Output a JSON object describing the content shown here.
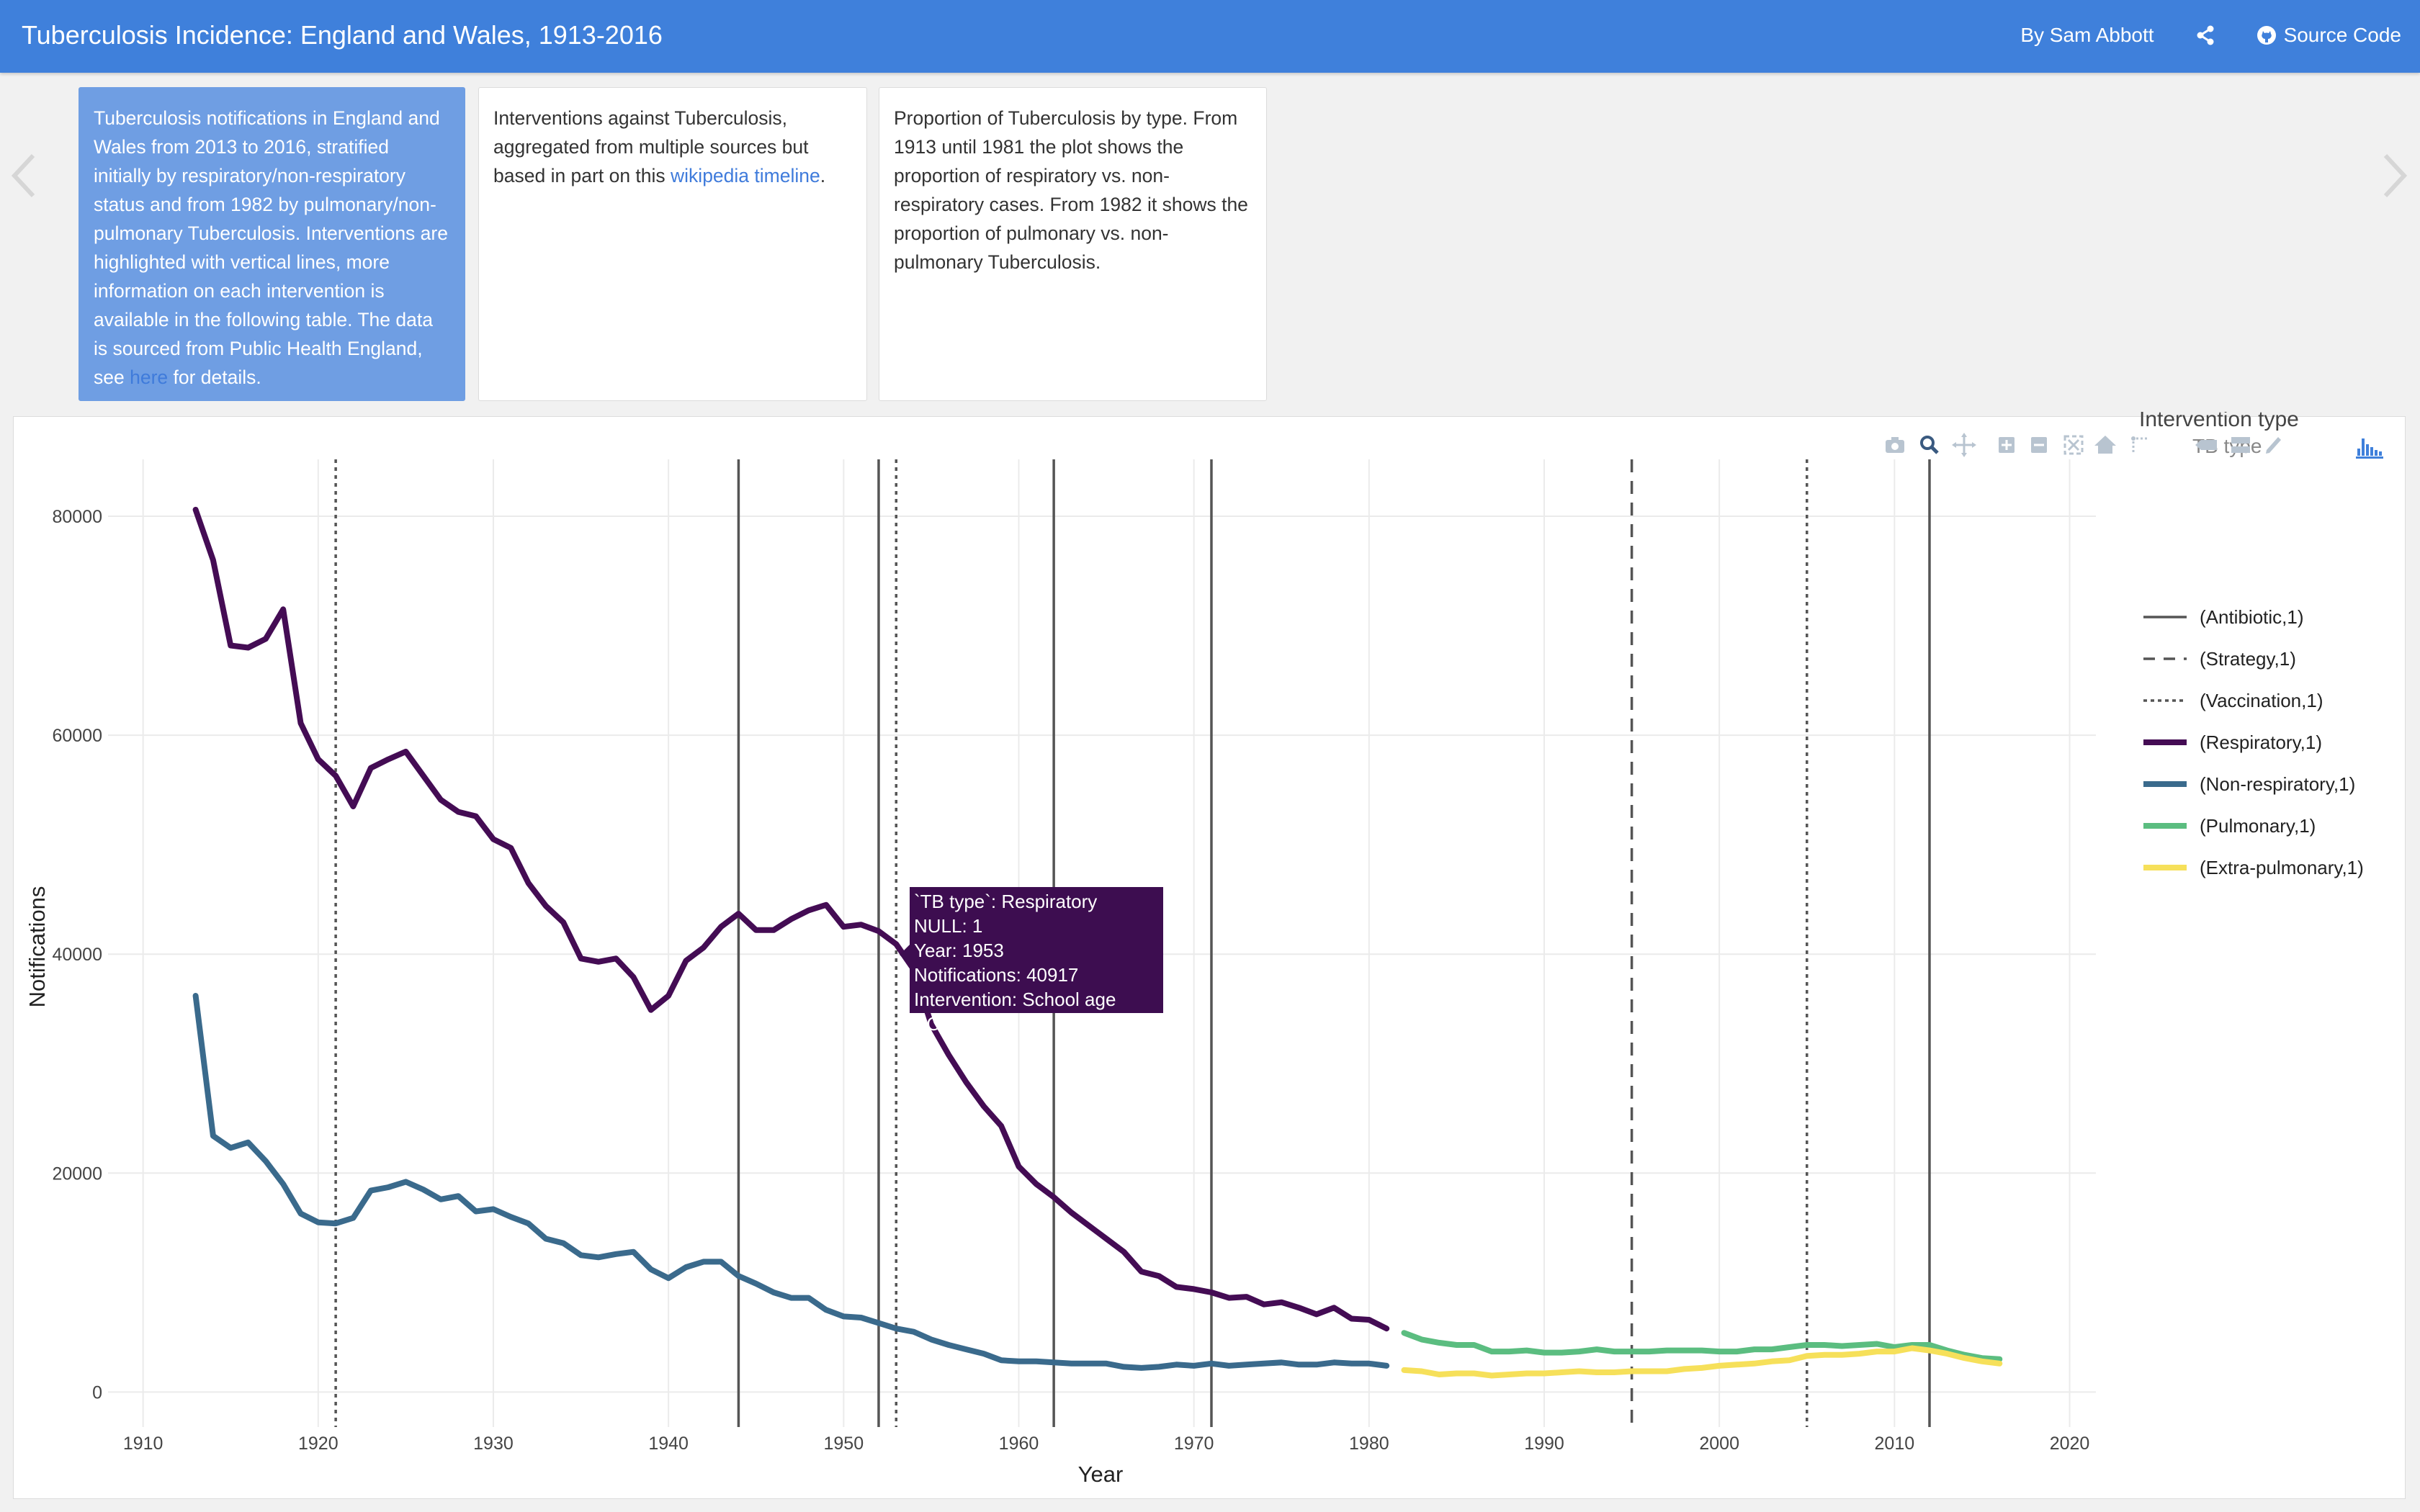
{
  "header": {
    "title": "Tuberculosis Incidence: England and Wales, 1913-2016",
    "author": "By Sam Abbott",
    "share_icon": "share-icon",
    "source_label": "Source Code",
    "source_icon": "github-icon"
  },
  "carousel": {
    "prev_icon": "chevron-left-icon",
    "next_icon": "chevron-right-icon",
    "cards": [
      {
        "text_before": "Tuberculosis notifications in England and Wales from 2013 to 2016, stratified initially by respiratory/non-respiratory status and from 1982 by pulmonary/non-pulmonary Tuberculosis. Interventions are highlighted with vertical lines, more information on each intervention is available in the following table. The data is sourced from Public Health England, see ",
        "link": "here",
        "text_after": " for details."
      },
      {
        "text_before": "Interventions against Tuberculosis, aggregated from multiple sources but based in part on this ",
        "link": "wikipedia timeline",
        "text_after": "."
      },
      {
        "text_before": "Proportion of Tuberculosis by type. From 1913 until 1981 the plot shows the proportion of respiratory vs. non-respiratory cases. From 1982 it shows the proportion of pulmonary vs. non-pulmonary Tuberculosis.",
        "link": "",
        "text_after": ""
      }
    ]
  },
  "modebar": {
    "icons": [
      "camera-icon",
      "zoom-icon",
      "pan-icon",
      "zoom-in-icon",
      "zoom-out-icon",
      "autoscale-icon",
      "reset-axes-icon",
      "spike-lines-icon",
      "hover-closest-icon",
      "hover-compare-icon",
      "plotly-logo-icon"
    ]
  },
  "legend": {
    "title": "Intervention type",
    "subtitle": "TB type",
    "items": [
      {
        "label": "(Antibiotic,1)",
        "style": "solid-thin",
        "color": "#555555"
      },
      {
        "label": "(Strategy,1)",
        "style": "dash",
        "color": "#555555"
      },
      {
        "label": "(Vaccination,1)",
        "style": "dot",
        "color": "#555555"
      },
      {
        "label": "(Respiratory,1)",
        "style": "thick",
        "color": "#440c54"
      },
      {
        "label": "(Non-respiratory,1)",
        "style": "thick",
        "color": "#3a6a8c"
      },
      {
        "label": "(Pulmonary,1)",
        "style": "thick",
        "color": "#5bbd80"
      },
      {
        "label": "(Extra-pulmonary,1)",
        "style": "thick",
        "color": "#f6e05a"
      }
    ]
  },
  "tooltip": {
    "line1": "`TB type`: Respiratory",
    "line2": "NULL: 1",
    "line3": "Year: 1953",
    "line4": "Notifications: 40917",
    "line5": "Intervention: School age BCG",
    "bg_color": "#3d0d50"
  },
  "chart_data": {
    "type": "line",
    "title": "",
    "xlabel": "Year",
    "ylabel": "Notifications",
    "xlim": [
      1908,
      2021.5
    ],
    "ylim": [
      -3200,
      85200
    ],
    "x_ticks": [
      1910,
      1920,
      1930,
      1940,
      1950,
      1960,
      1970,
      1980,
      1990,
      2000,
      2010,
      2020
    ],
    "y_ticks": [
      0,
      20000,
      40000,
      60000,
      80000
    ],
    "y_tick_labels": [
      "0",
      "20000",
      "40000",
      "60000",
      "80000"
    ],
    "grid": true,
    "legend_position": "right",
    "series": [
      {
        "name": "Respiratory",
        "color": "#440c54",
        "x": [
          1913,
          1914,
          1915,
          1916,
          1917,
          1918,
          1919,
          1920,
          1921,
          1922,
          1923,
          1924,
          1925,
          1926,
          1927,
          1928,
          1929,
          1930,
          1931,
          1932,
          1933,
          1934,
          1935,
          1936,
          1937,
          1938,
          1939,
          1940,
          1941,
          1942,
          1943,
          1944,
          1945,
          1946,
          1947,
          1948,
          1949,
          1950,
          1951,
          1952,
          1953,
          1954,
          1955,
          1956,
          1957,
          1958,
          1959,
          1960,
          1961,
          1962,
          1963,
          1964,
          1965,
          1966,
          1967,
          1968,
          1969,
          1970,
          1971,
          1972,
          1973,
          1974,
          1975,
          1976,
          1977,
          1978,
          1979,
          1980,
          1981
        ],
        "y": [
          80600,
          76000,
          68200,
          68000,
          68800,
          71500,
          61100,
          57800,
          56300,
          53500,
          57000,
          57800,
          58500,
          56300,
          54100,
          53000,
          52600,
          50500,
          49700,
          46500,
          44400,
          42900,
          39600,
          39300,
          39600,
          37900,
          34900,
          36200,
          39400,
          40600,
          42500,
          43700,
          42200,
          42200,
          43200,
          44000,
          44500,
          42500,
          42700,
          42100,
          40917,
          38600,
          33600,
          30800,
          28300,
          26100,
          24300,
          20600,
          19000,
          17800,
          16400,
          15200,
          14000,
          12800,
          11000,
          10600,
          9600,
          9400,
          9100,
          8600,
          8700,
          8000,
          8200,
          7700,
          7100,
          7700,
          6700,
          6600,
          5800
        ]
      },
      {
        "name": "Non-respiratory",
        "color": "#3a6a8c",
        "x": [
          1913,
          1914,
          1915,
          1916,
          1917,
          1918,
          1919,
          1920,
          1921,
          1922,
          1923,
          1924,
          1925,
          1926,
          1927,
          1928,
          1929,
          1930,
          1931,
          1932,
          1933,
          1934,
          1935,
          1936,
          1937,
          1938,
          1939,
          1940,
          1941,
          1942,
          1943,
          1944,
          1945,
          1946,
          1947,
          1948,
          1949,
          1950,
          1951,
          1952,
          1953,
          1954,
          1955,
          1956,
          1957,
          1958,
          1959,
          1960,
          1961,
          1962,
          1963,
          1964,
          1965,
          1966,
          1967,
          1968,
          1969,
          1970,
          1971,
          1972,
          1973,
          1974,
          1975,
          1976,
          1977,
          1978,
          1979,
          1980,
          1981
        ],
        "y": [
          36200,
          23400,
          22300,
          22800,
          21100,
          19000,
          16300,
          15500,
          15400,
          15900,
          18400,
          18700,
          19200,
          18500,
          17600,
          17900,
          16500,
          16700,
          16000,
          15400,
          14000,
          13600,
          12500,
          12300,
          12600,
          12800,
          11200,
          10400,
          11400,
          11900,
          11900,
          10600,
          9900,
          9100,
          8600,
          8600,
          7500,
          6900,
          6800,
          6300,
          5800,
          5500,
          4800,
          4300,
          3900,
          3500,
          2900,
          2800,
          2800,
          2700,
          2600,
          2600,
          2600,
          2300,
          2200,
          2300,
          2500,
          2400,
          2600,
          2400,
          2500,
          2600,
          2700,
          2500,
          2500,
          2700,
          2600,
          2600,
          2400
        ]
      },
      {
        "name": "Pulmonary",
        "color": "#5bbd80",
        "x": [
          1982,
          1983,
          1984,
          1985,
          1986,
          1987,
          1988,
          1989,
          1990,
          1991,
          1992,
          1993,
          1994,
          1995,
          1996,
          1997,
          1998,
          1999,
          2000,
          2001,
          2002,
          2003,
          2004,
          2005,
          2006,
          2007,
          2008,
          2009,
          2010,
          2011,
          2012,
          2013,
          2014,
          2015,
          2016
        ],
        "y": [
          5400,
          4800,
          4500,
          4300,
          4300,
          3700,
          3700,
          3800,
          3600,
          3600,
          3700,
          3900,
          3700,
          3700,
          3700,
          3800,
          3800,
          3800,
          3700,
          3700,
          3900,
          3900,
          4100,
          4300,
          4300,
          4200,
          4300,
          4400,
          4100,
          4300,
          4300,
          3800,
          3400,
          3100,
          3000
        ]
      },
      {
        "name": "Extra-pulmonary",
        "color": "#f6e05a",
        "x": [
          1982,
          1983,
          1984,
          1985,
          1986,
          1987,
          1988,
          1989,
          1990,
          1991,
          1992,
          1993,
          1994,
          1995,
          1996,
          1997,
          1998,
          1999,
          2000,
          2001,
          2002,
          2003,
          2004,
          2005,
          2006,
          2007,
          2008,
          2009,
          2010,
          2011,
          2012,
          2013,
          2014,
          2015,
          2016
        ],
        "y": [
          2000,
          1900,
          1600,
          1700,
          1700,
          1500,
          1600,
          1700,
          1700,
          1800,
          1900,
          1800,
          1800,
          1900,
          1900,
          1900,
          2100,
          2200,
          2400,
          2500,
          2600,
          2800,
          2900,
          3300,
          3400,
          3400,
          3500,
          3700,
          3700,
          4000,
          3800,
          3500,
          3100,
          2800,
          2600
        ]
      }
    ],
    "interventions": [
      {
        "year": 1921,
        "type": "Vaccination"
      },
      {
        "year": 1944,
        "type": "Antibiotic"
      },
      {
        "year": 1952,
        "type": "Antibiotic"
      },
      {
        "year": 1953,
        "type": "Vaccination"
      },
      {
        "year": 1962,
        "type": "Antibiotic"
      },
      {
        "year": 1971,
        "type": "Antibiotic"
      },
      {
        "year": 1995,
        "type": "Strategy"
      },
      {
        "year": 2005,
        "type": "Vaccination"
      },
      {
        "year": 2012,
        "type": "Antibiotic"
      }
    ]
  }
}
